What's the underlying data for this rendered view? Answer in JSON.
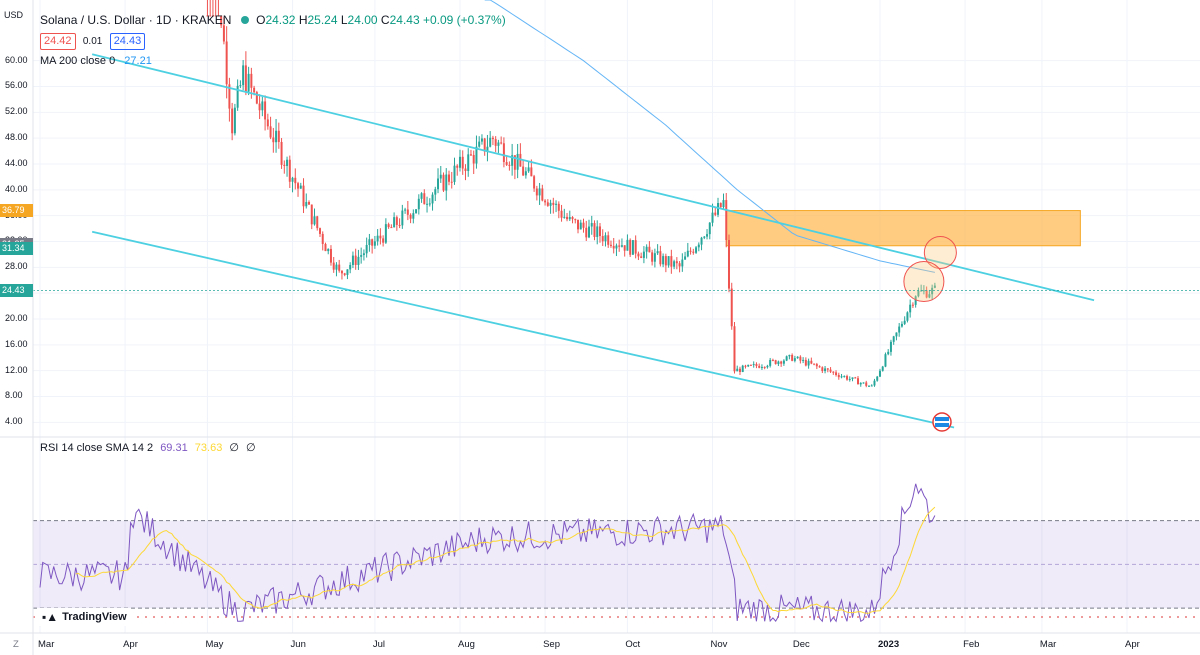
{
  "header": {
    "currency": "USD",
    "symbol_title": "Solana / U.S. Dollar · 1D · KRAKEN",
    "open_label": "O",
    "open": "24.32",
    "high_label": "H",
    "high": "25.24",
    "low_label": "L",
    "low": "24.00",
    "close_label": "C",
    "close": "24.43",
    "change": "+0.09 (+0.37%)",
    "bid": "24.42",
    "spread": "0.01",
    "ask": "24.43",
    "ma_label": "MA 200 close 0",
    "ma_value": "27.21"
  },
  "rsi_header": {
    "label": "RSI 14 close SMA 14 2",
    "value1": "69.31",
    "value2": "73.63",
    "na1": "∅",
    "na2": "∅"
  },
  "price_axis": {
    "ticks": [
      "60.00",
      "56.00",
      "52.00",
      "48.00",
      "44.00",
      "40.00",
      "36.00",
      "32.00",
      "28.00",
      "24.00",
      "20.00",
      "16.00",
      "12.00",
      "8.00",
      "4.00"
    ],
    "labels": [
      {
        "text": "36.79",
        "price": 36.79,
        "color": "#f5a623"
      },
      {
        "text": "31.35",
        "price": 31.55,
        "color": "#787b86"
      },
      {
        "text": "31.34",
        "price": 30.85,
        "color": "#26a69a"
      },
      {
        "text": "24.43",
        "price": 24.43,
        "color": "#26a69a"
      }
    ]
  },
  "time_axis": [
    "Mar",
    "Apr",
    "May",
    "Jun",
    "Jul",
    "Aug",
    "Sep",
    "Oct",
    "Nov",
    "Dec",
    "2023",
    "Feb",
    "Mar",
    "Apr"
  ],
  "logo": {
    "text": "TradingView"
  },
  "corner_label": "Z",
  "colors": {
    "up": "#26a69a",
    "down": "#ef5350",
    "channel": "#4dd0e1",
    "ma": "#64b5f6",
    "rsi": "#7e57c2",
    "rsi_ma": "#fdd835",
    "zone": "#ffb74d"
  },
  "chart_data": [
    {
      "type": "candlestick",
      "title": "Solana / U.S. Dollar · 1D · KRAKEN",
      "ylim": [
        2.5,
        68
      ],
      "date_range": [
        "2022-05-01",
        "2023-01-21"
      ],
      "notable_points": [
        {
          "date": "2022-05-01",
          "price": 88
        },
        {
          "date": "2022-05-10",
          "price": 50
        },
        {
          "date": "2022-05-14",
          "price": 58
        },
        {
          "date": "2022-06-18",
          "price": 27
        },
        {
          "date": "2022-08-13",
          "price": 48
        },
        {
          "date": "2022-09-10",
          "price": 35
        },
        {
          "date": "2022-10-20",
          "price": 28
        },
        {
          "date": "2022-11-05",
          "price": 38
        },
        {
          "date": "2022-11-09",
          "price": 12
        },
        {
          "date": "2022-11-30",
          "price": 14
        },
        {
          "date": "2022-12-29",
          "price": 9.5
        },
        {
          "date": "2023-01-14",
          "price": 24
        },
        {
          "date": "2023-01-21",
          "price": 24.43
        }
      ],
      "ma200": [
        {
          "date": "2022-08-10",
          "price": 70
        },
        {
          "date": "2022-09-15",
          "price": 60
        },
        {
          "date": "2022-10-15",
          "price": 50
        },
        {
          "date": "2022-11-10",
          "price": 40
        },
        {
          "date": "2022-12-01",
          "price": 33
        },
        {
          "date": "2023-01-01",
          "price": 29
        },
        {
          "date": "2023-01-21",
          "price": 27.21
        }
      ],
      "channel": {
        "upper": [
          {
            "date": "2022-03-20",
            "price": 61
          },
          {
            "date": "2023-03-20",
            "price": 22.9
          }
        ],
        "lower": [
          {
            "date": "2022-03-20",
            "price": 33.5
          },
          {
            "date": "2023-01-28",
            "price": 3.2
          }
        ]
      },
      "resistance_zone": {
        "from": "2022-11-06",
        "to": "2023-03-15",
        "top": 36.79,
        "bottom": 31.34
      }
    },
    {
      "type": "line",
      "title": "RSI 14 close SMA 14 2",
      "ylim": [
        20,
        100
      ],
      "bands": [
        70,
        50,
        30
      ],
      "notable_points": [
        {
          "date": "2022-04-03",
          "rsi": 75
        },
        {
          "date": "2022-05-12",
          "rsi": 28
        },
        {
          "date": "2022-08-10",
          "rsi": 62
        },
        {
          "date": "2022-11-05",
          "rsi": 67
        },
        {
          "date": "2022-11-10",
          "rsi": 30
        },
        {
          "date": "2022-12-29",
          "rsi": 28
        },
        {
          "date": "2023-01-14",
          "rsi": 88
        },
        {
          "date": "2023-01-21",
          "rsi": 69.31
        }
      ],
      "last_values": {
        "rsi": 69.31,
        "sma": 73.63
      }
    }
  ]
}
